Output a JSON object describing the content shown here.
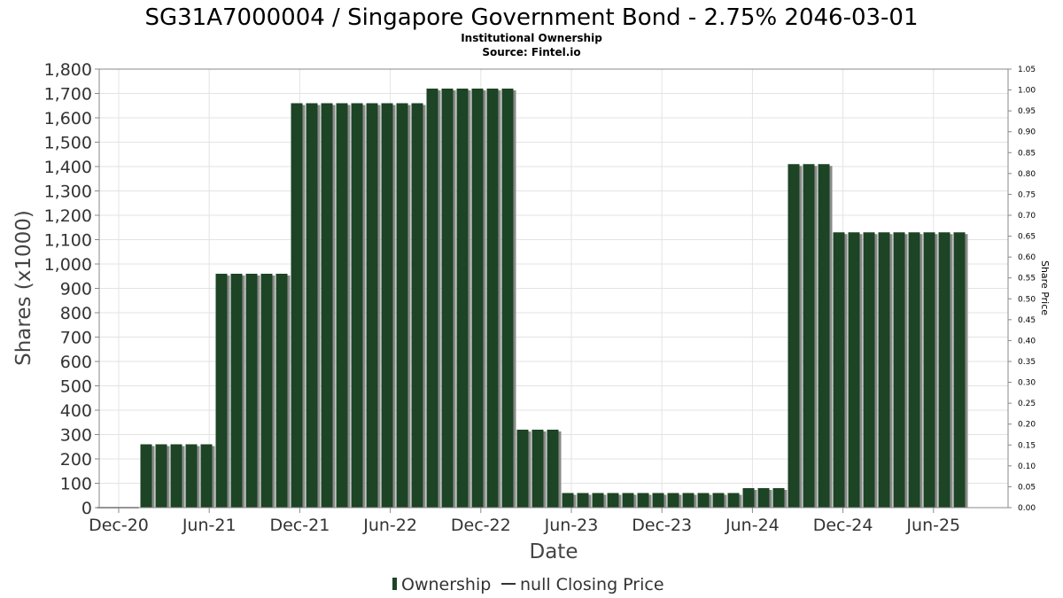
{
  "chart_data": {
    "type": "bar",
    "title": "SG31A7000004 / Singapore Government Bond - 2.75% 2046-03-01",
    "subtitles": [
      "Institutional Ownership",
      "Source: Fintel.io"
    ],
    "xlabel": "Date",
    "ylabel": "Shares (x1000)",
    "y2label": "Share Price",
    "ylim": [
      0,
      1800
    ],
    "y2lim": [
      0,
      1.05
    ],
    "yticks": [
      0,
      100,
      200,
      300,
      400,
      500,
      600,
      700,
      800,
      900,
      1000,
      1100,
      1200,
      1300,
      1400,
      1500,
      1600,
      1700,
      1800
    ],
    "y2ticks": [
      "0.00",
      "0.05",
      "0.10",
      "0.15",
      "0.20",
      "0.25",
      "0.30",
      "0.35",
      "0.40",
      "0.45",
      "0.50",
      "0.55",
      "0.60",
      "0.65",
      "0.70",
      "0.75",
      "0.80",
      "0.85",
      "0.90",
      "0.95",
      "1.00",
      "1.05"
    ],
    "xticks": [
      "Dec-20",
      "Jun-21",
      "Dec-21",
      "Jun-22",
      "Dec-22",
      "Jun-23",
      "Dec-23",
      "Jun-24",
      "Dec-24",
      "Jun-25"
    ],
    "grid": true,
    "legend_position": "bottom-center",
    "colors": {
      "bar": "#1c4425",
      "bar_shadow": "#8a8a8a",
      "frame": "#888888"
    },
    "series": [
      {
        "name": "Ownership",
        "values": [
          0,
          0,
          0,
          260,
          260,
          260,
          260,
          260,
          960,
          960,
          960,
          960,
          960,
          1660,
          1660,
          1660,
          1660,
          1660,
          1660,
          1660,
          1660,
          1660,
          1720,
          1720,
          1720,
          1720,
          1720,
          1720,
          320,
          320,
          320,
          60,
          60,
          60,
          60,
          60,
          60,
          60,
          60,
          60,
          60,
          60,
          60,
          80,
          80,
          80,
          1410,
          1410,
          1410,
          1130,
          1130,
          1130,
          1130,
          1130,
          1130,
          1130,
          1130,
          1130
        ]
      }
    ],
    "legend": [
      {
        "label": "Ownership",
        "symbol": "bar"
      },
      {
        "label": "null Closing Price",
        "symbol": "line"
      }
    ]
  }
}
